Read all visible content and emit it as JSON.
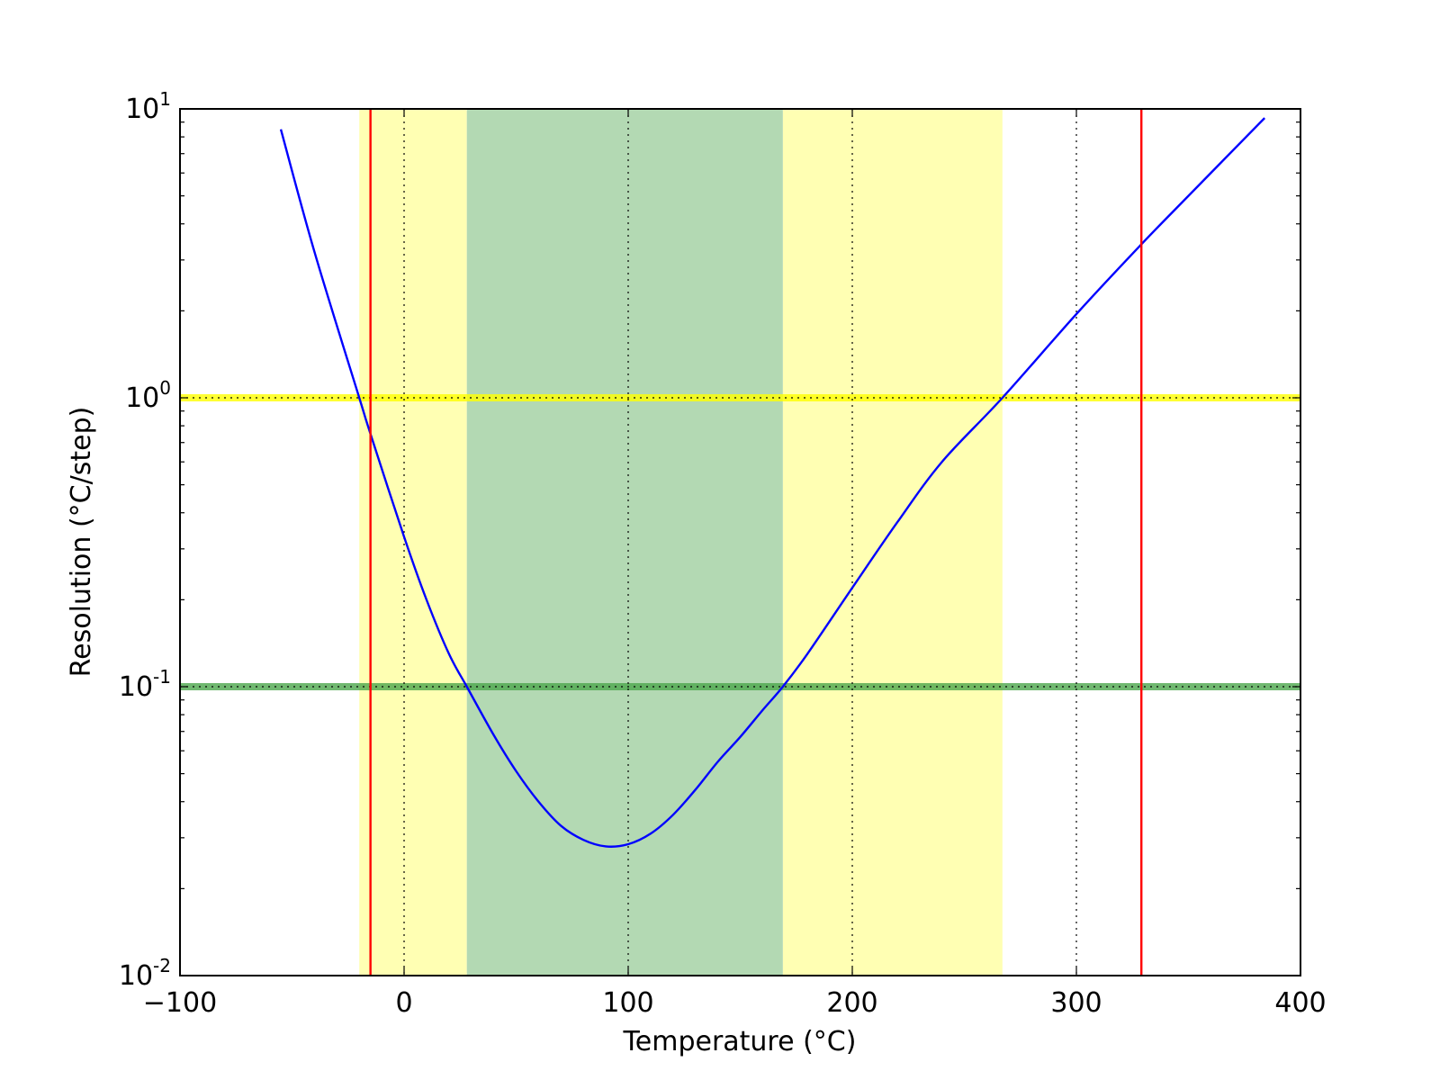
{
  "chart_data": {
    "type": "line",
    "title": "",
    "xlabel": "Temperature (°C)",
    "ylabel": "Resolution (°C/step)",
    "xlim": [
      -100,
      400
    ],
    "ylim": [
      0.01,
      10
    ],
    "yscale": "log",
    "grid": "vertical dotted lines at major x ticks",
    "x_ticks": [
      {
        "value": -100,
        "label": "−100"
      },
      {
        "value": 0,
        "label": "0"
      },
      {
        "value": 100,
        "label": "100"
      },
      {
        "value": 200,
        "label": "200"
      },
      {
        "value": 300,
        "label": "300"
      },
      {
        "value": 400,
        "label": "400"
      }
    ],
    "y_ticks": [
      {
        "value": 0.01,
        "base": "10",
        "exp": "-2"
      },
      {
        "value": 0.1,
        "base": "10",
        "exp": "-1"
      },
      {
        "value": 1,
        "base": "10",
        "exp": "0"
      },
      {
        "value": 10,
        "base": "10",
        "exp": "1"
      }
    ],
    "series": [
      {
        "color": "#0000ff",
        "x": [
          -55,
          -40,
          -20,
          -15,
          0,
          10,
          20,
          28,
          40,
          50,
          60,
          70,
          80,
          90,
          100,
          110,
          120,
          130,
          140,
          150,
          160,
          169,
          180,
          200,
          220,
          240,
          267,
          300,
          329,
          350,
          384
        ],
        "y": [
          8.5,
          3.2,
          1.0,
          0.75,
          0.33,
          0.2,
          0.13,
          0.1,
          0.068,
          0.051,
          0.04,
          0.033,
          0.0295,
          0.028,
          0.0285,
          0.031,
          0.036,
          0.044,
          0.055,
          0.067,
          0.083,
          0.1,
          0.13,
          0.22,
          0.37,
          0.6,
          1.0,
          1.95,
          3.4,
          5.0,
          9.3
        ]
      }
    ],
    "shaded_regions": [
      {
        "x0": -20,
        "x1": 28,
        "color": "#ffffb3"
      },
      {
        "x0": 169,
        "x1": 267,
        "color": "#ffffb3"
      },
      {
        "x0": 28,
        "x1": 169,
        "color": "#b3d9b3"
      }
    ],
    "horizontal_bands": [
      {
        "y": 1,
        "color": "#ffff00"
      },
      {
        "y": 0.1,
        "color": "#4ca64c"
      }
    ],
    "vertical_lines": [
      {
        "x": -15,
        "color": "#ff0000"
      },
      {
        "x": 329,
        "color": "#ff0000"
      }
    ]
  }
}
